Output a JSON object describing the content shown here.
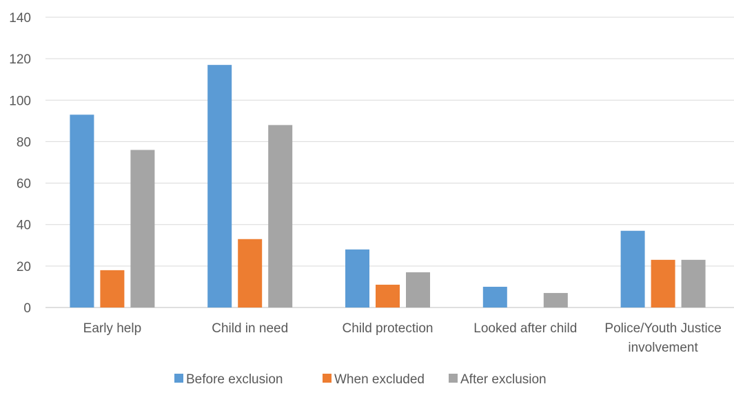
{
  "chart_data": {
    "type": "bar",
    "title": "",
    "xlabel": "",
    "ylabel": "",
    "categories": [
      [
        "Early help"
      ],
      [
        "Child in need"
      ],
      [
        "Child protection"
      ],
      [
        "Looked after child"
      ],
      [
        "Police/Youth Justice",
        "involvement"
      ]
    ],
    "series": [
      {
        "name": "Before exclusion",
        "color": "#5B9BD5",
        "values": [
          93,
          117,
          28,
          10,
          37
        ]
      },
      {
        "name": "When excluded",
        "color": "#ED7D31",
        "values": [
          18,
          33,
          11,
          0,
          23
        ]
      },
      {
        "name": "After exclusion",
        "color": "#A5A5A5",
        "values": [
          76,
          88,
          17,
          7,
          23
        ]
      }
    ],
    "ylim": [
      0,
      140
    ],
    "yticks": [
      0,
      20,
      40,
      60,
      80,
      100,
      120,
      140
    ],
    "grid": true,
    "legend_position": "bottom"
  }
}
